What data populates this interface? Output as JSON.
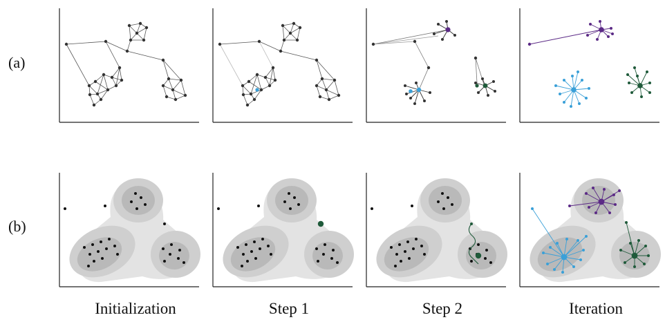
{
  "row_labels": {
    "a": "(a)",
    "b": "(b)"
  },
  "column_labels": [
    "Initialization",
    "Step 1",
    "Step 2",
    "Iteration"
  ],
  "colors": {
    "node": "#333333",
    "edge": "#555555",
    "purple": "#5b2a86",
    "blue": "#3aa0d8",
    "green": "#1f5a3a",
    "ellipse_outer": "#e3e3e3",
    "ellipse_mid": "#cfcfcf",
    "ellipse_inner": "#b9b9b9"
  }
}
